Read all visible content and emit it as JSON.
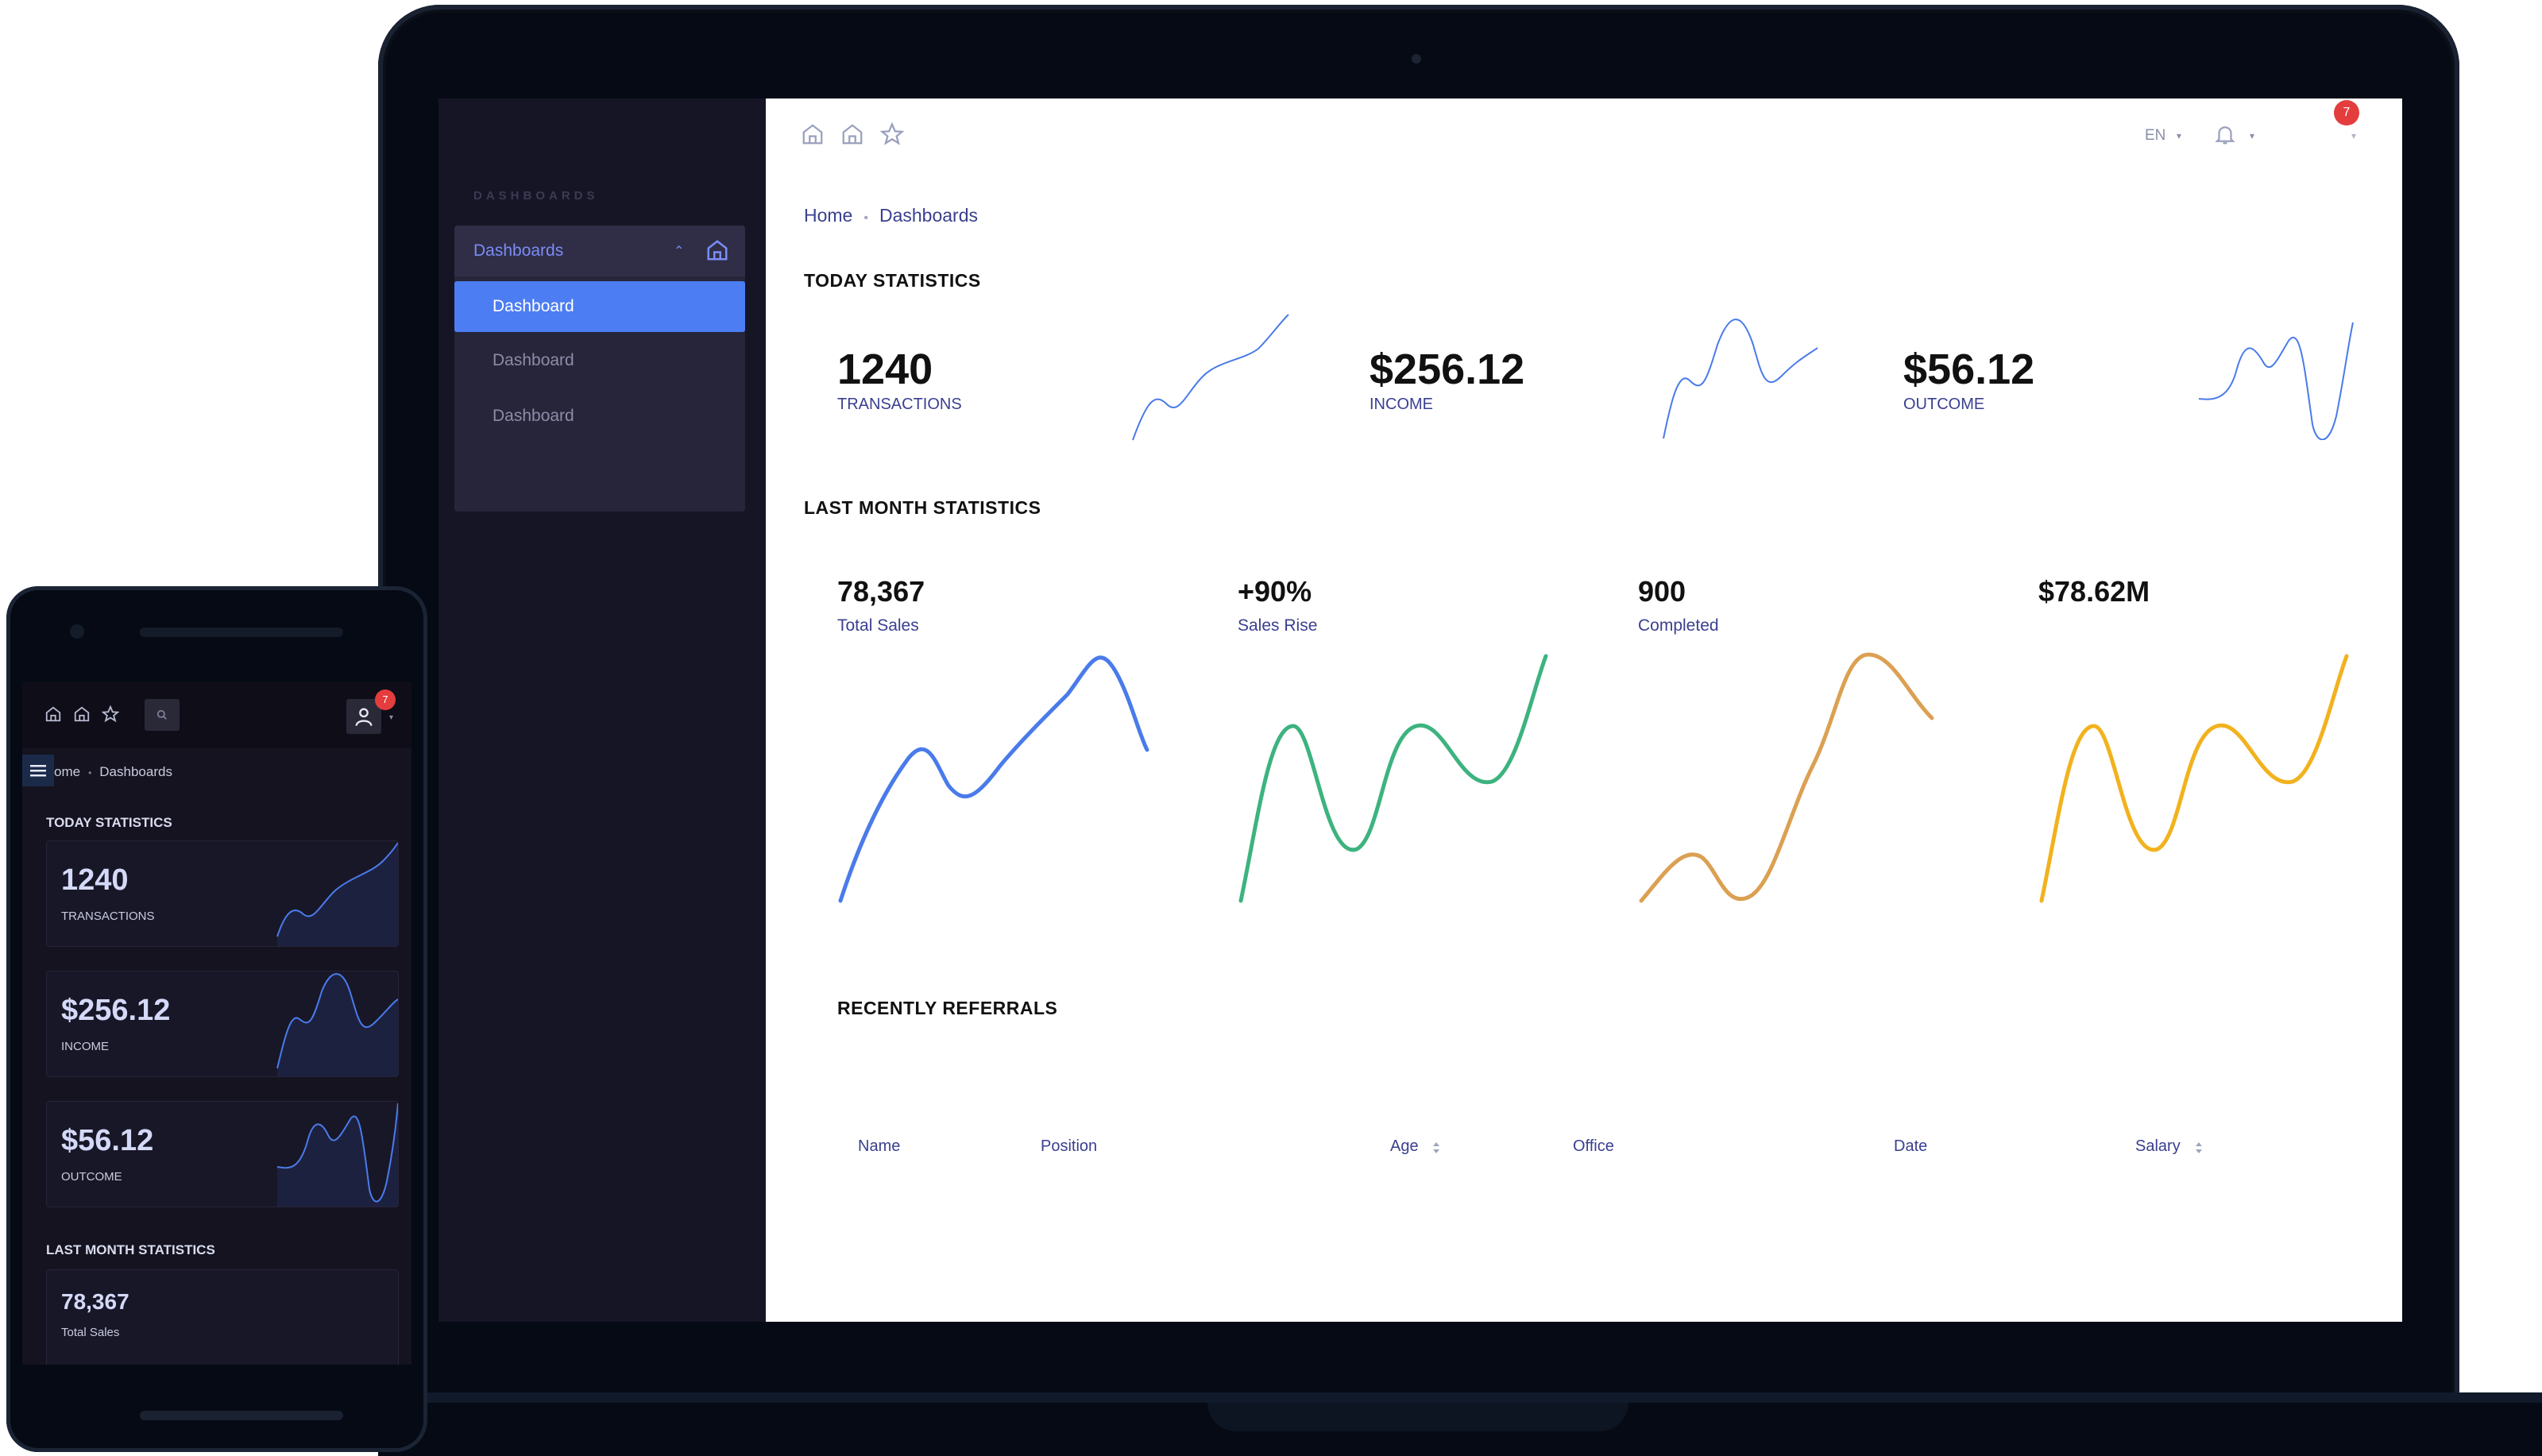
{
  "laptop": {
    "sidebar": {
      "section_label": "DASHBOARDS",
      "group_label": "Dashboards",
      "items": [
        "Dashboard",
        "Dashboard",
        "Dashboard"
      ]
    },
    "topbar": {
      "language": "EN",
      "notification_count": "7"
    },
    "breadcrumb": {
      "home": "Home",
      "current": "Dashboards"
    },
    "today_statistics": {
      "title": "TODAY STATISTICS",
      "stats": [
        {
          "value": "1240",
          "label": "TRANSACTIONS"
        },
        {
          "value": "$256.12",
          "label": "INCOME"
        },
        {
          "value": "$56.12",
          "label": "OUTCOME"
        }
      ]
    },
    "last_month_statistics": {
      "title": "LAST MONTH STATISTICS",
      "stats": [
        {
          "value": "78,367",
          "label": "Total Sales",
          "color": "#4a7bea"
        },
        {
          "value": "+90%",
          "label": "Sales Rise",
          "color": "#3db37f"
        },
        {
          "value": "900",
          "label": "Completed",
          "color": "#dba052"
        },
        {
          "value": "$78.62M",
          "label": "",
          "color": "#f2b21e"
        }
      ]
    },
    "recently_referrals": {
      "title": "RECENTLY REFERRALS",
      "columns": [
        "Name",
        "Position",
        "Age",
        "Office",
        "Date",
        "Salary"
      ]
    }
  },
  "phone": {
    "notification_count": "7",
    "breadcrumb": {
      "home": "ome",
      "current": "Dashboards"
    },
    "today_statistics_title": "TODAY STATISTICS",
    "cards": [
      {
        "value": "1240",
        "label": "TRANSACTIONS"
      },
      {
        "value": "$256.12",
        "label": "INCOME"
      },
      {
        "value": "$56.12",
        "label": "OUTCOME"
      }
    ],
    "last_month_title": "LAST MONTH STATISTICS",
    "last_month_card": {
      "value": "78,367",
      "label": "Total Sales"
    }
  },
  "colors": {
    "accent": "#4d7df2",
    "sidebar_bg": "#161526",
    "badge": "#e43d3d",
    "label_text": "#3a3f8f"
  },
  "icons": [
    "home-icon",
    "home-alt-icon",
    "star-icon",
    "bell-icon",
    "search-icon",
    "user-icon",
    "menu-icon",
    "chevron-down-icon",
    "chevron-up-icon",
    "sort-icon"
  ]
}
